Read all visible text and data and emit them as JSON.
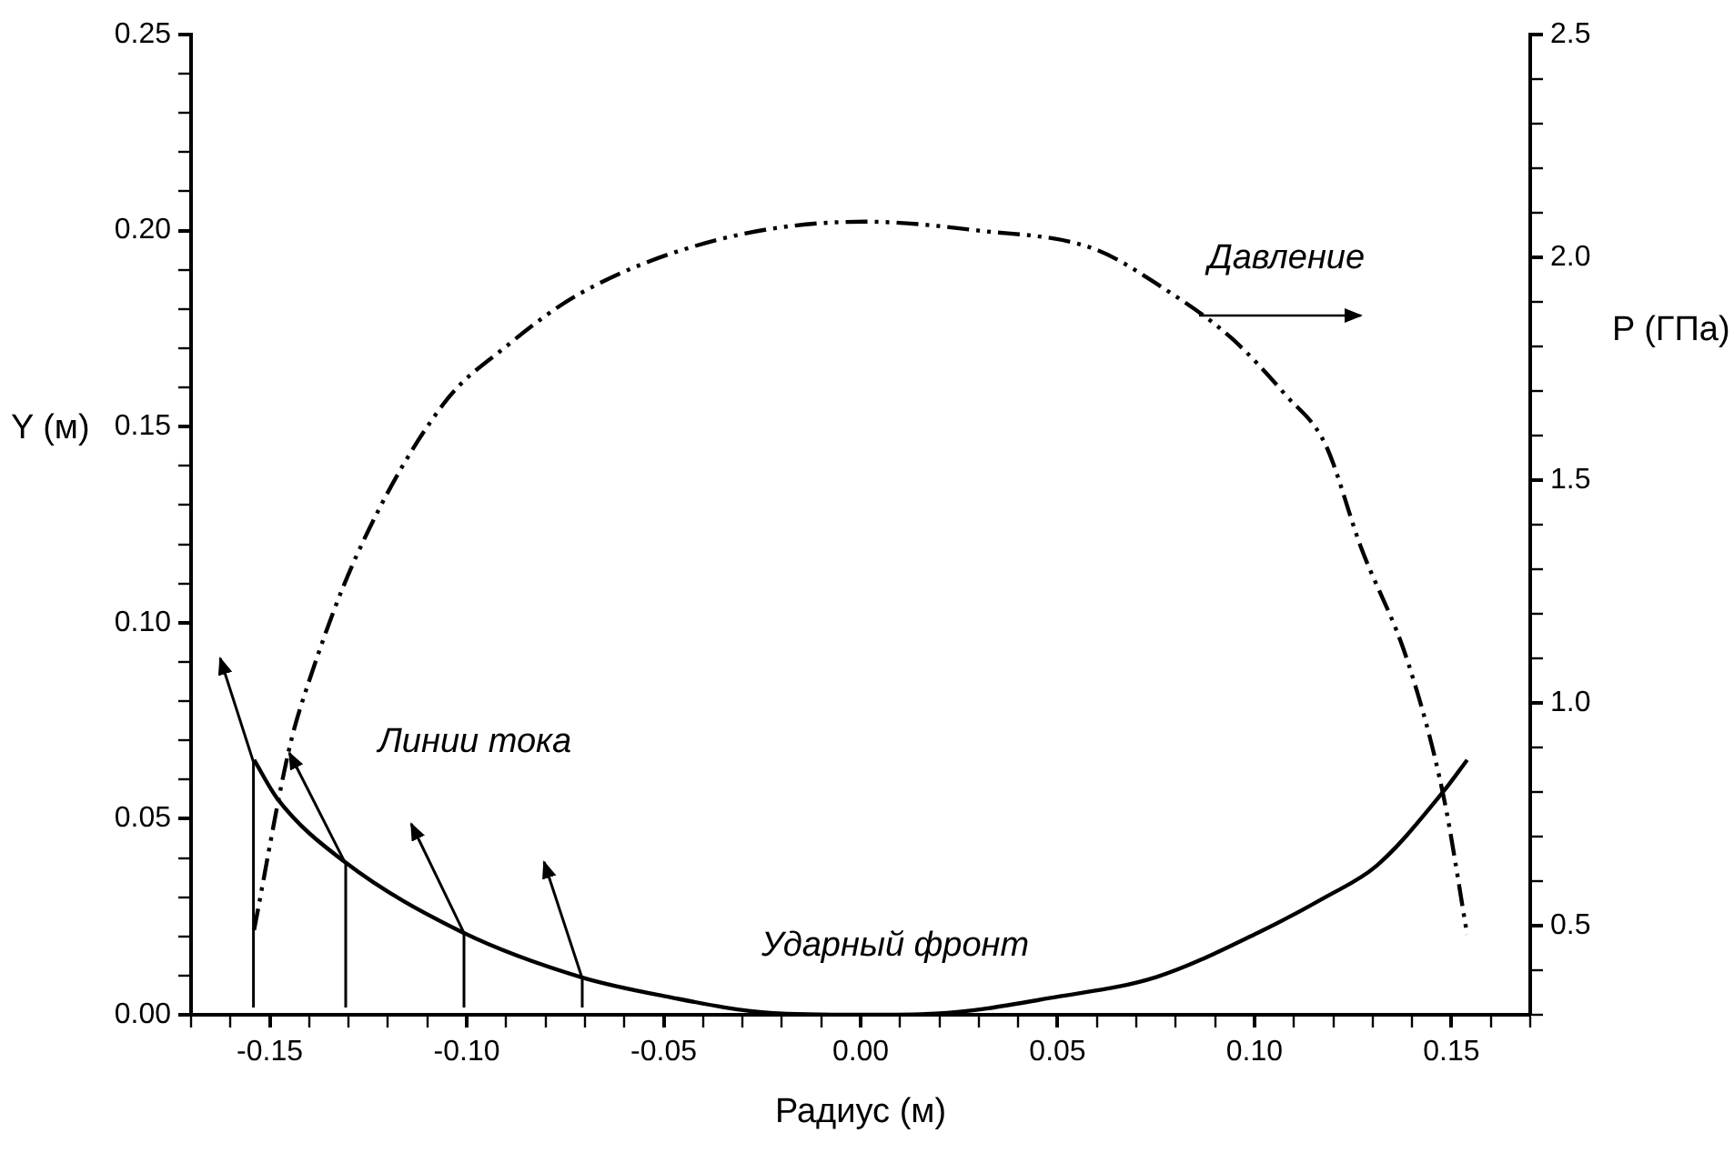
{
  "chart_data": {
    "type": "line",
    "xlabel": "Радиус (м)",
    "ylabel": "Y (м)",
    "y2label": "P (ГПа)",
    "series": [
      {
        "name": null,
        "color": "#000000",
        "line_style": "solid",
        "x": [
          -0.154,
          -0.148,
          -0.131,
          -0.101,
          -0.071,
          -0.05,
          -0.023,
          0,
          0.019,
          0.05,
          0.075,
          0.101,
          0.118,
          0.131,
          0.148,
          0.154
        ],
        "values": [
          0.065,
          0.055,
          0.039,
          0.021,
          0.0096,
          0.0048,
          0.0005,
          0,
          0.0003,
          0.0046,
          0.0096,
          0.021,
          0.03,
          0.038,
          0.057,
          0.065
        ]
      },
      {
        "name": null,
        "color": "#000000",
        "line_style": "dashed",
        "axis": "y2",
        "x": [
          -0.154,
          -0.145,
          -0.14,
          -0.128,
          -0.106,
          -0.09,
          -0.071,
          -0.036,
          0.001,
          0.03,
          0.059,
          0.077,
          0.094,
          0.108,
          0.118,
          0.127,
          0.139,
          0.148,
          0.154
        ],
        "values": [
          0.49,
          0.9,
          1.05,
          1.33,
          1.67,
          1.8,
          1.92,
          2.04,
          2.08,
          2.06,
          2.02,
          1.93,
          1.82,
          1.69,
          1.58,
          1.35,
          1.09,
          0.79,
          0.48
        ]
      }
    ],
    "annotations": [
      "Линии тока",
      "Ударный фронт",
      "Давление"
    ],
    "xlim": [
      -0.17,
      0.17
    ],
    "ylim": [
      0,
      0.25
    ],
    "y2lim": [
      0.3,
      2.5
    ],
    "xticks": [
      {
        "value": -0.17,
        "label": null
      },
      {
        "value": -0.16,
        "label": null
      },
      {
        "value": -0.15,
        "label": "-0.15"
      },
      {
        "value": -0.14,
        "label": null
      },
      {
        "value": -0.13,
        "label": null
      },
      {
        "value": -0.12,
        "label": null
      },
      {
        "value": -0.11,
        "label": null
      },
      {
        "value": -0.1,
        "label": "-0.10"
      },
      {
        "value": -0.09,
        "label": null
      },
      {
        "value": -0.08,
        "label": null
      },
      {
        "value": -0.07,
        "label": null
      },
      {
        "value": -0.06,
        "label": null
      },
      {
        "value": -0.05,
        "label": "-0.05"
      },
      {
        "value": -0.04,
        "label": null
      },
      {
        "value": -0.03,
        "label": null
      },
      {
        "value": -0.02,
        "label": null
      },
      {
        "value": -0.01,
        "label": null
      },
      {
        "value": 0,
        "label": "0.00"
      },
      {
        "value": 0.01,
        "label": null
      },
      {
        "value": 0.02,
        "label": null
      },
      {
        "value": 0.03,
        "label": null
      },
      {
        "value": 0.04,
        "label": null
      },
      {
        "value": 0.05,
        "label": "0.05"
      },
      {
        "value": 0.06,
        "label": null
      },
      {
        "value": 0.07,
        "label": null
      },
      {
        "value": 0.08,
        "label": null
      },
      {
        "value": 0.09,
        "label": null
      },
      {
        "value": 0.1,
        "label": "0.10"
      },
      {
        "value": 0.11,
        "label": null
      },
      {
        "value": 0.12,
        "label": null
      },
      {
        "value": 0.13,
        "label": null
      },
      {
        "value": 0.14,
        "label": null
      },
      {
        "value": 0.15,
        "label": "0.15"
      },
      {
        "value": 0.16,
        "label": null
      },
      {
        "value": 0.17,
        "label": null
      }
    ],
    "yticks": [
      {
        "value": 0,
        "label": "0.00"
      },
      {
        "value": 0.01,
        "label": null
      },
      {
        "value": 0.02,
        "label": null
      },
      {
        "value": 0.03,
        "label": null
      },
      {
        "value": 0.04,
        "label": null
      },
      {
        "value": 0.05,
        "label": "0.05"
      },
      {
        "value": 0.06,
        "label": null
      },
      {
        "value": 0.07,
        "label": null
      },
      {
        "value": 0.08,
        "label": null
      },
      {
        "value": 0.09,
        "label": null
      },
      {
        "value": 0.1,
        "label": "0.10"
      },
      {
        "value": 0.11,
        "label": null
      },
      {
        "value": 0.12,
        "label": null
      },
      {
        "value": 0.13,
        "label": null
      },
      {
        "value": 0.14,
        "label": null
      },
      {
        "value": 0.15,
        "label": "0.15"
      },
      {
        "value": 0.16,
        "label": null
      },
      {
        "value": 0.17,
        "label": null
      },
      {
        "value": 0.18,
        "label": null
      },
      {
        "value": 0.19,
        "label": null
      },
      {
        "value": 0.2,
        "label": "0.20"
      },
      {
        "value": 0.21,
        "label": null
      },
      {
        "value": 0.22,
        "label": null
      },
      {
        "value": 0.23,
        "label": null
      },
      {
        "value": 0.24,
        "label": null
      },
      {
        "value": 0.25,
        "label": "0.25"
      }
    ],
    "y2ticks": [
      {
        "value": 0.3,
        "label": null
      },
      {
        "value": 0.4,
        "label": null
      },
      {
        "value": 0.5,
        "label": "0.5"
      },
      {
        "value": 0.6,
        "label": null
      },
      {
        "value": 0.7,
        "label": null
      },
      {
        "value": 0.8,
        "label": null
      },
      {
        "value": 0.9,
        "label": null
      },
      {
        "value": 1.0,
        "label": "1.0"
      },
      {
        "value": 1.1,
        "label": null
      },
      {
        "value": 1.2,
        "label": null
      },
      {
        "value": 1.3,
        "label": null
      },
      {
        "value": 1.4,
        "label": null
      },
      {
        "value": 1.5,
        "label": "1.5"
      },
      {
        "value": 1.6,
        "label": null
      },
      {
        "value": 1.7,
        "label": null
      },
      {
        "value": 1.8,
        "label": null
      },
      {
        "value": 1.9,
        "label": null
      },
      {
        "value": 2.0,
        "label": "2.0"
      },
      {
        "value": 2.1,
        "label": null
      },
      {
        "value": 2.2,
        "label": null
      },
      {
        "value": 2.3,
        "label": null
      },
      {
        "value": 2.4,
        "label": null
      },
      {
        "value": 2.5,
        "label": "2.5"
      }
    ],
    "grid": false,
    "legend": false,
    "marker": "none"
  }
}
